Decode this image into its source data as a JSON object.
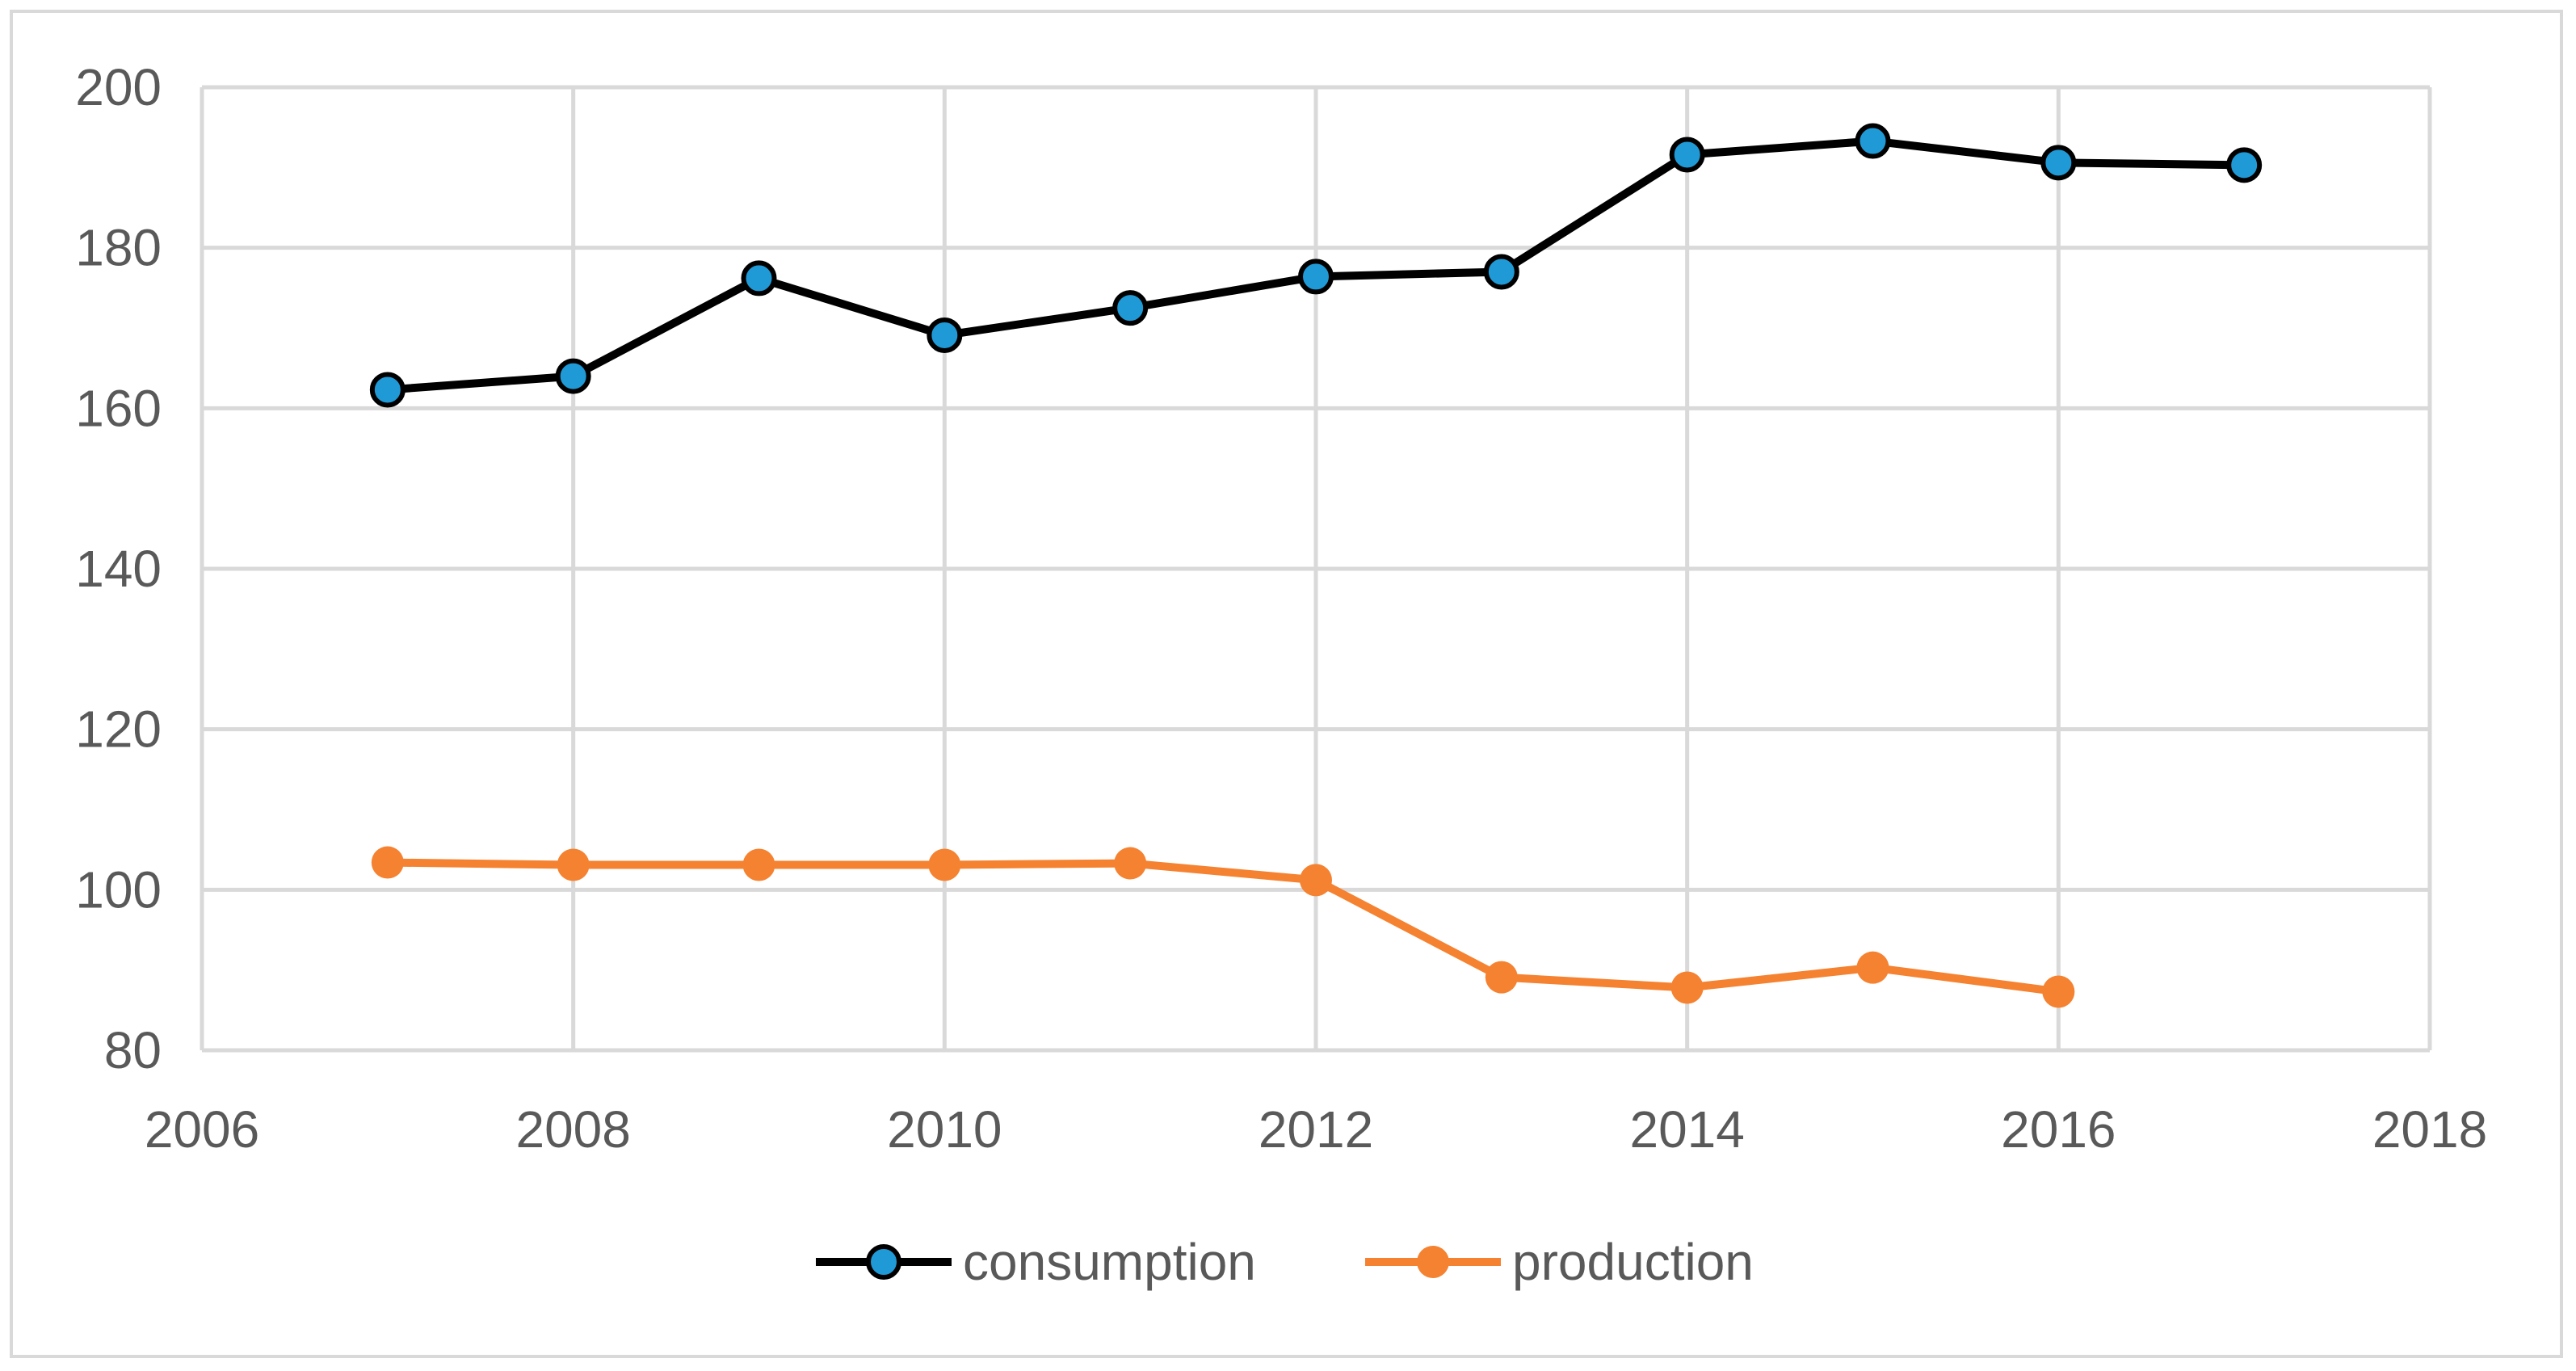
{
  "chart_data": {
    "type": "line",
    "title": "",
    "xlabel": "",
    "ylabel": "",
    "xlim": [
      2006,
      2018
    ],
    "ylim": [
      80,
      200
    ],
    "x_ticks": [
      2006,
      2008,
      2010,
      2012,
      2014,
      2016,
      2018
    ],
    "y_ticks": [
      80,
      100,
      120,
      140,
      160,
      180,
      200
    ],
    "x_tick_labels": [
      "2006",
      "2008",
      "2010",
      "2012",
      "2014",
      "2016",
      "2018"
    ],
    "y_tick_labels": [
      "80",
      "100",
      "120",
      "140",
      "160",
      "180",
      "200"
    ],
    "grid": true,
    "legend_position": "bottom",
    "series": [
      {
        "name": "consumption",
        "line_color": "#000000",
        "marker_color": "#1f9ad6",
        "x": [
          2007,
          2008,
          2009,
          2010,
          2011,
          2012,
          2013,
          2014,
          2015,
          2016,
          2017
        ],
        "values": [
          162.3,
          164.0,
          176.2,
          169.1,
          172.5,
          176.4,
          177.0,
          191.6,
          193.3,
          190.6,
          190.3
        ]
      },
      {
        "name": "production",
        "line_color": "#f58231",
        "marker_color": "#f58231",
        "x": [
          2007,
          2008,
          2009,
          2010,
          2011,
          2012,
          2013,
          2014,
          2015,
          2016
        ],
        "values": [
          103.4,
          103.1,
          103.1,
          103.1,
          103.3,
          101.2,
          89.1,
          87.8,
          90.3,
          87.3
        ]
      }
    ]
  }
}
